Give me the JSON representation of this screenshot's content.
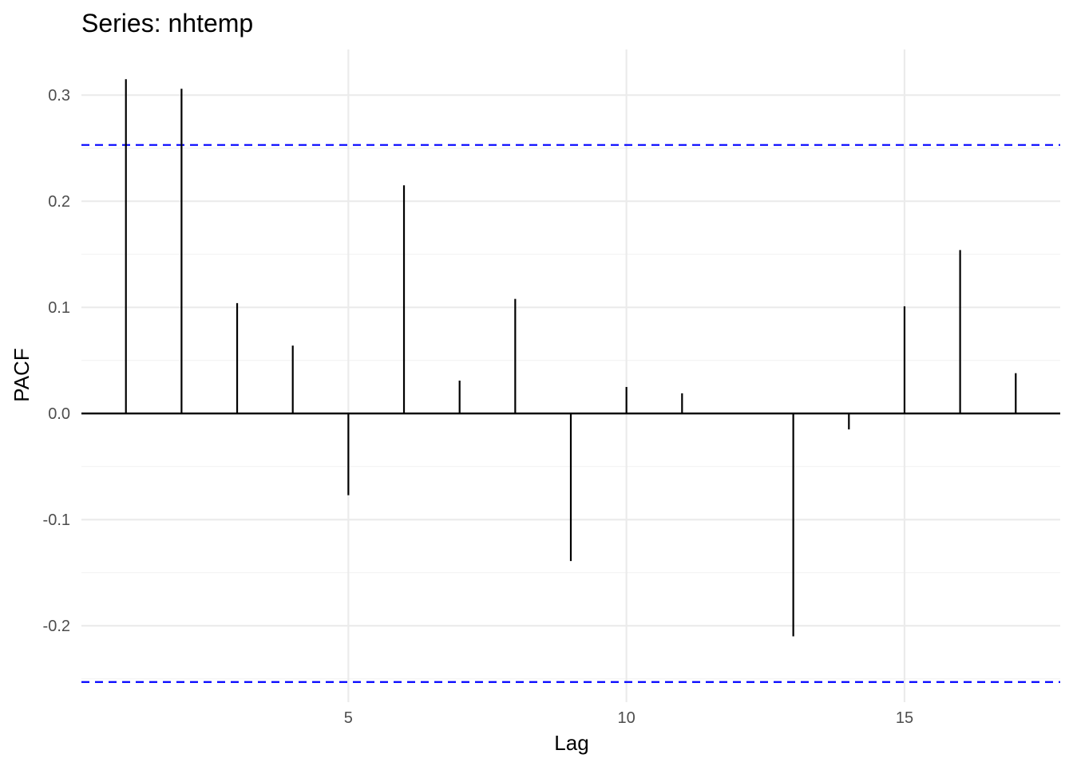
{
  "chart_data": {
    "type": "bar",
    "title": "Series: nhtemp",
    "xlabel": "Lag",
    "ylabel": "PACF",
    "x": [
      1,
      2,
      3,
      4,
      5,
      6,
      7,
      8,
      9,
      10,
      11,
      12,
      13,
      14,
      15,
      16,
      17
    ],
    "values": [
      0.315,
      0.306,
      0.104,
      0.064,
      -0.077,
      0.215,
      0.031,
      0.108,
      -0.139,
      0.025,
      0.019,
      0.0,
      -0.21,
      -0.015,
      0.101,
      0.154,
      0.038
    ],
    "ci": [
      0.253,
      -0.253
    ],
    "xlim": [
      0.2,
      17.8
    ],
    "ylim": [
      -0.272,
      0.343
    ],
    "x_ticks": [
      5,
      10,
      15
    ],
    "x_tick_labels": [
      "5",
      "10",
      "15"
    ],
    "y_ticks": [
      0.3,
      0.2,
      0.1,
      0.0,
      -0.1,
      -0.2
    ],
    "y_tick_labels": [
      "0.3",
      "0.2",
      "0.1",
      "0.0",
      "-0.1",
      "-0.2"
    ],
    "grid": true,
    "colors": {
      "bars": "#000000",
      "ci": "#0000ff",
      "grid": "#ebebeb"
    }
  }
}
